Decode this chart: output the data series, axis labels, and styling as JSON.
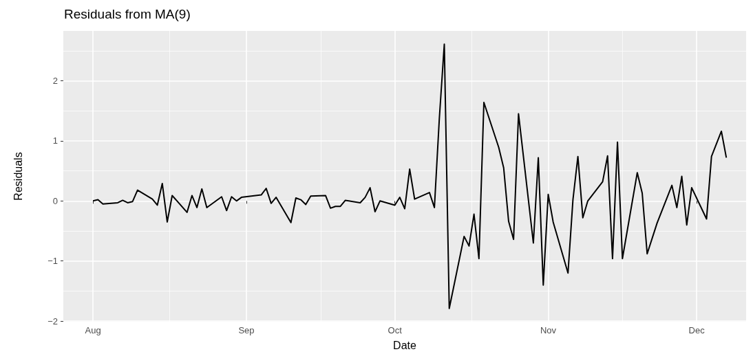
{
  "chart_data": {
    "type": "line",
    "title": "Residuals from MA(9)",
    "xlabel": "Date",
    "ylabel": "Residuals",
    "x": [
      "--08-01",
      "--08-02",
      "--08-03",
      "--08-06",
      "--08-07",
      "--08-08",
      "--08-09",
      "--08-10",
      "--08-13",
      "--08-14",
      "--08-15",
      "--08-16",
      "--08-17",
      "--08-20",
      "--08-21",
      "--08-22",
      "--08-23",
      "--08-24",
      "--08-27",
      "--08-28",
      "--08-29",
      "--08-30",
      "--08-31",
      "--09-04",
      "--09-05",
      "--09-06",
      "--09-07",
      "--09-10",
      "--09-11",
      "--09-12",
      "--09-13",
      "--09-14",
      "--09-17",
      "--09-18",
      "--09-19",
      "--09-20",
      "--09-21",
      "--09-24",
      "--09-25",
      "--09-26",
      "--09-27",
      "--09-28",
      "--10-01",
      "--10-02",
      "--10-03",
      "--10-04",
      "--10-05",
      "--10-08",
      "--10-09",
      "--10-10",
      "--10-11",
      "--10-12",
      "--10-15",
      "--10-16",
      "--10-17",
      "--10-18",
      "--10-19",
      "--10-22",
      "--10-23",
      "--10-24",
      "--10-25",
      "--10-26",
      "--10-29",
      "--10-30",
      "--10-31",
      "--11-01",
      "--11-02",
      "--11-05",
      "--11-06",
      "--11-07",
      "--11-08",
      "--11-09",
      "--11-12",
      "--11-13",
      "--11-14",
      "--11-15",
      "--11-16",
      "--11-19",
      "--11-20",
      "--11-21",
      "--11-23",
      "--11-26",
      "--11-27",
      "--11-28",
      "--11-29",
      "--11-30",
      "--12-03",
      "--12-04",
      "--12-06",
      "--12-07"
    ],
    "series": [
      {
        "color": "#000000",
        "values": [
          0.0,
          0.02,
          -0.05,
          -0.03,
          0.01,
          -0.03,
          -0.01,
          0.18,
          0.03,
          -0.07,
          0.29,
          -0.35,
          0.09,
          -0.19,
          0.09,
          -0.11,
          0.2,
          -0.11,
          0.07,
          -0.16,
          0.07,
          0.0,
          0.06,
          0.1,
          0.21,
          -0.04,
          0.06,
          -0.36,
          0.05,
          0.02,
          -0.06,
          0.08,
          0.09,
          -0.12,
          -0.09,
          -0.09,
          0.01,
          -0.03,
          0.06,
          0.22,
          -0.18,
          0.0,
          -0.07,
          0.06,
          -0.13,
          0.53,
          0.03,
          0.14,
          -0.11,
          1.38,
          2.61,
          -1.79,
          -0.59,
          -0.75,
          -0.22,
          -0.96,
          1.64,
          0.89,
          0.55,
          -0.34,
          -0.64,
          1.45,
          -0.7,
          0.72,
          -1.4,
          0.11,
          -0.35,
          -1.2,
          0.02,
          0.74,
          -0.28,
          0.0,
          0.32,
          0.75,
          -0.96,
          0.98,
          -0.96,
          0.47,
          0.13,
          -0.88,
          -0.37,
          0.26,
          -0.11,
          0.41,
          -0.4,
          0.22,
          -0.3,
          0.74,
          1.16,
          0.72
        ]
      }
    ],
    "xlim": [
      "--07-26",
      "--12-11"
    ],
    "xticks": [
      {
        "value": "--08-01",
        "label": "Aug"
      },
      {
        "value": "--09-01",
        "label": "Sep"
      },
      {
        "value": "--10-01",
        "label": "Oct"
      },
      {
        "value": "--11-01",
        "label": "Nov"
      },
      {
        "value": "--12-01",
        "label": "Dec"
      }
    ],
    "ylim": [
      -2.01,
      2.83
    ],
    "yticks": [
      {
        "value": -2,
        "label": "−2"
      },
      {
        "value": -1,
        "label": "−1"
      },
      0,
      1,
      2
    ],
    "grid": true,
    "marker": "none",
    "line_style": "solid"
  }
}
